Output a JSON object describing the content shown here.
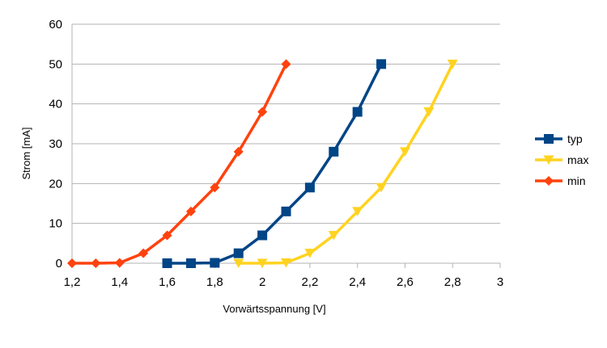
{
  "chart_data": {
    "type": "line",
    "title": "",
    "xlabel": "Vorwärtsspannung [V]",
    "ylabel": "Strom [mA]",
    "xlim": [
      1.2,
      3
    ],
    "ylim": [
      0,
      60
    ],
    "x_ticks": [
      1.2,
      1.4,
      1.6,
      1.8,
      2,
      2.2,
      2.4,
      2.6,
      2.8,
      3
    ],
    "x_tick_labels": [
      "1,2",
      "1,4",
      "1,6",
      "1,8",
      "2",
      "2,2",
      "2,4",
      "2,6",
      "2,8",
      "3"
    ],
    "y_ticks": [
      0,
      10,
      20,
      30,
      40,
      50,
      60
    ],
    "y_tick_labels": [
      "0",
      "10",
      "20",
      "30",
      "40",
      "50",
      "60"
    ],
    "grid": "horizontal",
    "legend_position": "right",
    "series": [
      {
        "name": "typ",
        "color": "#004586",
        "marker": "square",
        "x": [
          1.6,
          1.7,
          1.8,
          1.9,
          2.0,
          2.1,
          2.2,
          2.3,
          2.4,
          2.5
        ],
        "y": [
          0,
          0,
          0.1,
          2.5,
          7,
          13,
          19,
          28,
          38,
          50
        ]
      },
      {
        "name": "max",
        "color": "#ffd320",
        "marker": "triangle-down",
        "x": [
          1.9,
          2.0,
          2.1,
          2.2,
          2.3,
          2.4,
          2.5,
          2.6,
          2.7,
          2.8
        ],
        "y": [
          0,
          0,
          0.1,
          2.5,
          7,
          13,
          19,
          28,
          38,
          50
        ]
      },
      {
        "name": "min",
        "color": "#ff420e",
        "marker": "diamond",
        "x": [
          1.2,
          1.3,
          1.4,
          1.5,
          1.6,
          1.7,
          1.8,
          1.9,
          2.0,
          2.1
        ],
        "y": [
          0,
          0,
          0.1,
          2.5,
          7,
          13,
          19,
          28,
          38,
          50
        ]
      }
    ]
  }
}
